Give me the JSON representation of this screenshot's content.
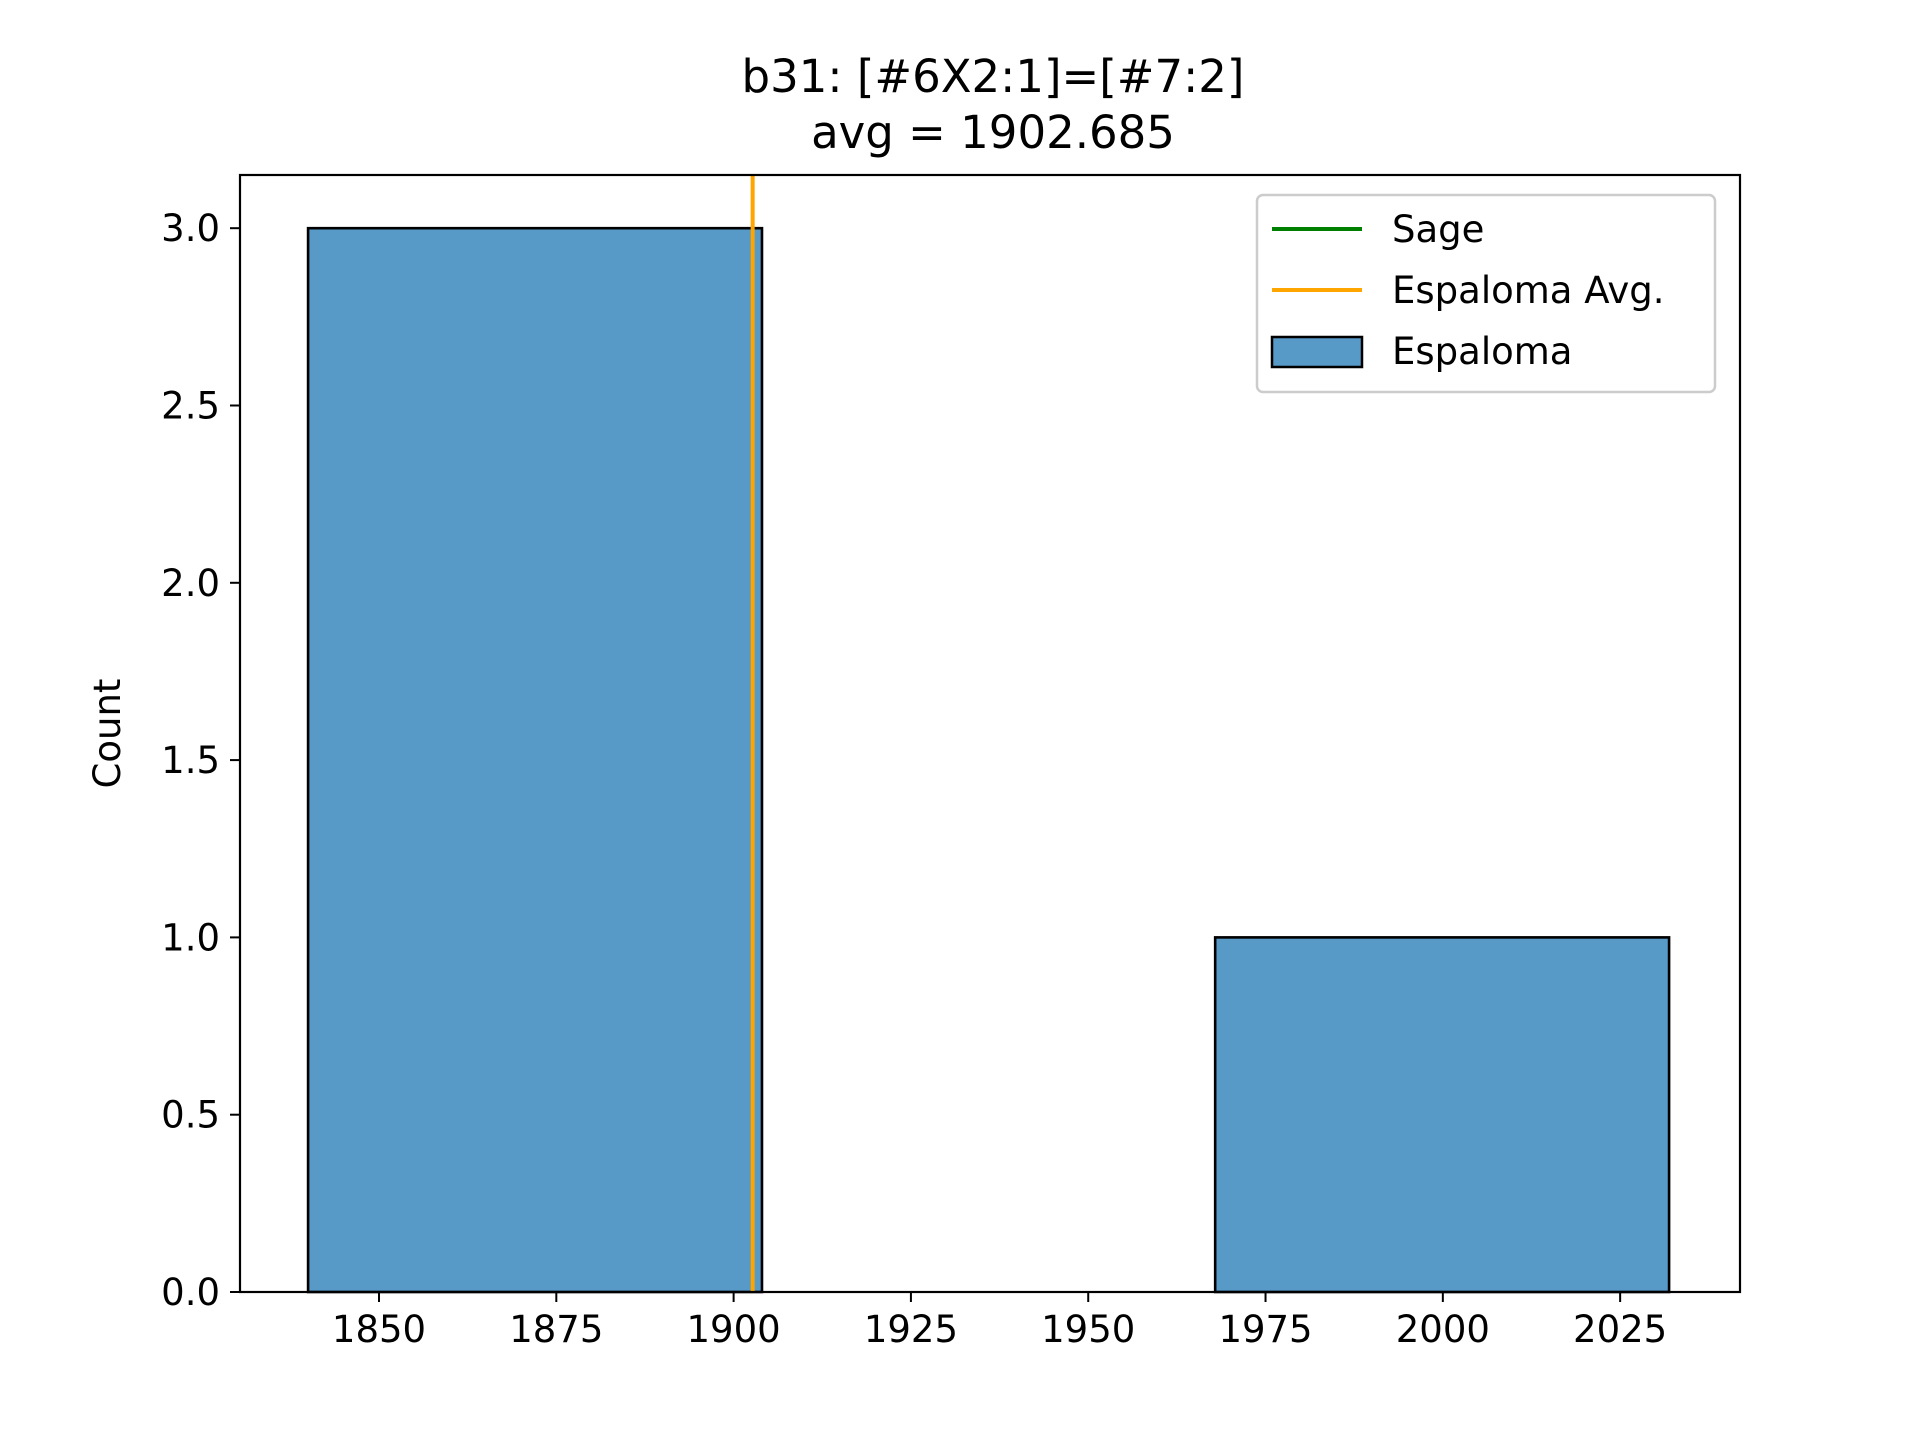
{
  "chart_data": {
    "type": "bar",
    "title": "b31: [#6X2:1]=[#7:2]",
    "subtitle": "avg = 1902.685",
    "xlabel": "",
    "ylabel": "Count",
    "xlim": [
      1830.4,
      2041.9
    ],
    "ylim": [
      0,
      3.15
    ],
    "x_ticks": [
      {
        "value": 1850,
        "label": "1850"
      },
      {
        "value": 1875,
        "label": "1875"
      },
      {
        "value": 1900,
        "label": "1900"
      },
      {
        "value": 1925,
        "label": "1925"
      },
      {
        "value": 1950,
        "label": "1950"
      },
      {
        "value": 1975,
        "label": "1975"
      },
      {
        "value": 2000,
        "label": "2000"
      },
      {
        "value": 2025,
        "label": "2025"
      }
    ],
    "y_ticks": [
      {
        "value": 0.0,
        "label": "0.0"
      },
      {
        "value": 0.5,
        "label": "0.5"
      },
      {
        "value": 1.0,
        "label": "1.0"
      },
      {
        "value": 1.5,
        "label": "1.5"
      },
      {
        "value": 2.0,
        "label": "2.0"
      },
      {
        "value": 2.5,
        "label": "2.5"
      },
      {
        "value": 3.0,
        "label": "3.0"
      }
    ],
    "grid": false,
    "legend_position": "top-right",
    "bins": [
      {
        "start": 1840.0,
        "end": 1904.0,
        "count": 3
      },
      {
        "start": 1904.0,
        "end": 1967.9,
        "count": 0
      },
      {
        "start": 1967.9,
        "end": 2031.9,
        "count": 1
      }
    ],
    "vlines": [
      {
        "name": "Espaloma Avg.",
        "x": 1902.685,
        "color": "#ffa500"
      }
    ],
    "legend": [
      {
        "label": "Sage",
        "kind": "line",
        "color": "#008000"
      },
      {
        "label": "Espaloma Avg.",
        "kind": "line",
        "color": "#ffa500"
      },
      {
        "label": "Espaloma",
        "kind": "patch",
        "color": "#5799c7"
      }
    ],
    "colors": {
      "bar_fill": "#5799c7",
      "bar_edge": "#000000",
      "axis": "#000000",
      "legend_border": "#cccccc"
    }
  }
}
